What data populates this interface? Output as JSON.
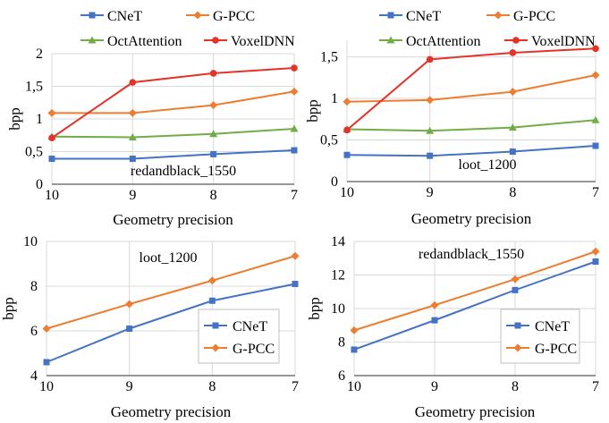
{
  "chart_data": [
    {
      "type": "line",
      "title": "redandblack_1550",
      "xlabel": "Geometry precision",
      "ylabel": "bpp",
      "x": [
        "10",
        "9",
        "8",
        "7"
      ],
      "ylim": [
        0,
        2
      ],
      "yticks": [
        "0",
        "0,5",
        "1",
        "1,5",
        "2"
      ],
      "grid": true,
      "legend_position": "top",
      "series": [
        {
          "name": "CNeT",
          "color": "#4472C4",
          "marker": "square",
          "values": [
            0.39,
            0.39,
            0.46,
            0.52
          ]
        },
        {
          "name": "G-PCC",
          "color": "#ED7D31",
          "marker": "diamond",
          "values": [
            1.09,
            1.09,
            1.21,
            1.42
          ]
        },
        {
          "name": "OctAttention",
          "color": "#70AD47",
          "marker": "triangle",
          "values": [
            0.73,
            0.72,
            0.77,
            0.85
          ]
        },
        {
          "name": "VoxelDNN",
          "color": "#E53228",
          "marker": "circle",
          "values": [
            0.71,
            1.56,
            1.7,
            1.78
          ]
        }
      ]
    },
    {
      "type": "line",
      "title": "loot_1200",
      "xlabel": "Geometry precision",
      "ylabel": "bpp",
      "x": [
        "10",
        "9",
        "8",
        "7"
      ],
      "ylim": [
        0,
        1.7
      ],
      "yticks": [
        "0",
        "0,5",
        "1",
        "1,5"
      ],
      "grid": true,
      "legend_position": "top",
      "series": [
        {
          "name": "CNeT",
          "color": "#4472C4",
          "marker": "square",
          "values": [
            0.32,
            0.31,
            0.36,
            0.43
          ]
        },
        {
          "name": "G-PCC",
          "color": "#ED7D31",
          "marker": "diamond",
          "values": [
            0.96,
            0.98,
            1.08,
            1.28
          ]
        },
        {
          "name": "OctAttention",
          "color": "#70AD47",
          "marker": "triangle",
          "values": [
            0.63,
            0.61,
            0.65,
            0.74
          ]
        },
        {
          "name": "VoxelDNN",
          "color": "#E53228",
          "marker": "circle",
          "values": [
            0.62,
            1.47,
            1.55,
            1.6
          ]
        }
      ]
    },
    {
      "type": "line",
      "title": "loot_1200",
      "xlabel": "Geometry precision",
      "ylabel": "bpp",
      "x": [
        "10",
        "9",
        "8",
        "7"
      ],
      "ylim": [
        4,
        10
      ],
      "yticks": [
        "4",
        "6",
        "8",
        "10"
      ],
      "grid": true,
      "legend_position": "bottom-right",
      "series": [
        {
          "name": "CNeT",
          "color": "#4472C4",
          "marker": "square",
          "values": [
            4.6,
            6.1,
            7.35,
            8.1
          ]
        },
        {
          "name": "G-PCC",
          "color": "#ED7D31",
          "marker": "diamond",
          "values": [
            6.1,
            7.2,
            8.25,
            9.35
          ]
        }
      ]
    },
    {
      "type": "line",
      "title": "redandblack_1550",
      "xlabel": "Geometry precision",
      "ylabel": "bpp",
      "x": [
        "10",
        "9",
        "8",
        "7"
      ],
      "ylim": [
        6,
        14
      ],
      "yticks": [
        "6",
        "8",
        "10",
        "12",
        "14"
      ],
      "grid": true,
      "legend_position": "bottom-right",
      "series": [
        {
          "name": "CNeT",
          "color": "#4472C4",
          "marker": "square",
          "values": [
            7.55,
            9.3,
            11.1,
            12.8
          ]
        },
        {
          "name": "G-PCC",
          "color": "#ED7D31",
          "marker": "diamond",
          "values": [
            8.7,
            10.2,
            11.75,
            13.4
          ]
        }
      ]
    }
  ]
}
